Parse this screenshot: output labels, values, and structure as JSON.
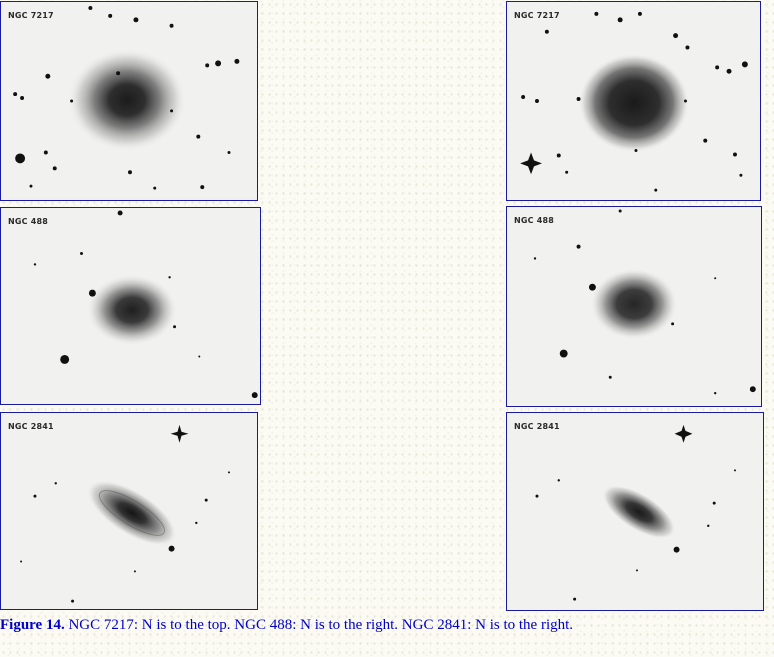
{
  "figure": {
    "panels": [
      {
        "label": "NGC 7217"
      },
      {
        "label": "NGC 488"
      },
      {
        "label": "NGC 2841"
      },
      {
        "label": "NGC 7217"
      },
      {
        "label": "NGC 488"
      },
      {
        "label": "NGC 2841"
      }
    ],
    "caption": {
      "figure_label": "Figure 14.",
      "text": " NGC 7217: N is to the top. NGC 488: N is to the right. NGC 2841: N is to the right."
    }
  },
  "colors": {
    "caption": "#0000c8",
    "frame": "#1a1aa0",
    "sky": "#f1f1ef",
    "galaxy_core": "#2b2b2b"
  }
}
